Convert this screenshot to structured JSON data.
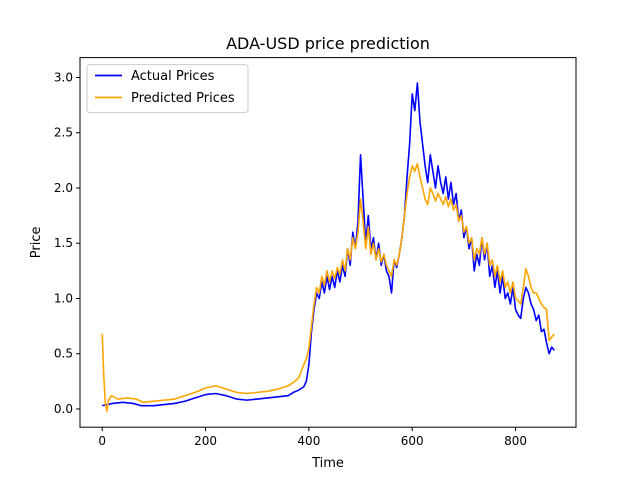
{
  "chart_data": {
    "type": "line",
    "title": "ADA-USD price prediction",
    "xlabel": "Time",
    "ylabel": "Price",
    "xlim": [
      -43,
      917
    ],
    "ylim": [
      -0.165,
      3.18
    ],
    "xticks": [
      0,
      200,
      400,
      600,
      800
    ],
    "xtick_labels": [
      "0",
      "200",
      "400",
      "600",
      "800"
    ],
    "yticks": [
      0.0,
      0.5,
      1.0,
      1.5,
      2.0,
      2.5,
      3.0
    ],
    "ytick_labels": [
      "0.0",
      "0.5",
      "1.0",
      "1.5",
      "2.0",
      "2.5",
      "3.0"
    ],
    "grid": false,
    "legend": "upper-left",
    "series": [
      {
        "name": "Actual Prices",
        "color": "#0000ff",
        "points": [
          [
            0,
            0.03
          ],
          [
            20,
            0.05
          ],
          [
            40,
            0.06
          ],
          [
            60,
            0.05
          ],
          [
            75,
            0.03
          ],
          [
            100,
            0.03
          ],
          [
            120,
            0.04
          ],
          [
            140,
            0.05
          ],
          [
            160,
            0.07
          ],
          [
            180,
            0.1
          ],
          [
            200,
            0.13
          ],
          [
            220,
            0.14
          ],
          [
            240,
            0.12
          ],
          [
            260,
            0.09
          ],
          [
            280,
            0.08
          ],
          [
            300,
            0.09
          ],
          [
            320,
            0.1
          ],
          [
            340,
            0.11
          ],
          [
            360,
            0.12
          ],
          [
            370,
            0.15
          ],
          [
            380,
            0.17
          ],
          [
            390,
            0.2
          ],
          [
            395,
            0.25
          ],
          [
            400,
            0.4
          ],
          [
            405,
            0.7
          ],
          [
            410,
            0.9
          ],
          [
            415,
            1.05
          ],
          [
            420,
            1.0
          ],
          [
            425,
            1.15
          ],
          [
            430,
            1.05
          ],
          [
            435,
            1.2
          ],
          [
            440,
            1.08
          ],
          [
            445,
            1.2
          ],
          [
            450,
            1.1
          ],
          [
            455,
            1.25
          ],
          [
            460,
            1.15
          ],
          [
            465,
            1.3
          ],
          [
            470,
            1.2
          ],
          [
            475,
            1.45
          ],
          [
            480,
            1.3
          ],
          [
            485,
            1.6
          ],
          [
            490,
            1.45
          ],
          [
            495,
            1.7
          ],
          [
            500,
            2.3
          ],
          [
            505,
            1.9
          ],
          [
            510,
            1.5
          ],
          [
            515,
            1.75
          ],
          [
            520,
            1.45
          ],
          [
            525,
            1.55
          ],
          [
            530,
            1.35
          ],
          [
            535,
            1.5
          ],
          [
            540,
            1.3
          ],
          [
            545,
            1.4
          ],
          [
            550,
            1.25
          ],
          [
            555,
            1.2
          ],
          [
            560,
            1.05
          ],
          [
            565,
            1.35
          ],
          [
            570,
            1.28
          ],
          [
            575,
            1.4
          ],
          [
            580,
            1.55
          ],
          [
            585,
            1.75
          ],
          [
            590,
            2.1
          ],
          [
            595,
            2.4
          ],
          [
            600,
            2.85
          ],
          [
            605,
            2.7
          ],
          [
            610,
            2.95
          ],
          [
            615,
            2.6
          ],
          [
            620,
            2.4
          ],
          [
            625,
            2.2
          ],
          [
            630,
            2.05
          ],
          [
            635,
            2.3
          ],
          [
            640,
            2.15
          ],
          [
            645,
            2.0
          ],
          [
            650,
            2.2
          ],
          [
            655,
            2.05
          ],
          [
            660,
            1.95
          ],
          [
            665,
            2.1
          ],
          [
            670,
            1.9
          ],
          [
            675,
            2.05
          ],
          [
            680,
            1.85
          ],
          [
            685,
            1.95
          ],
          [
            690,
            1.7
          ],
          [
            695,
            1.8
          ],
          [
            700,
            1.55
          ],
          [
            705,
            1.65
          ],
          [
            710,
            1.45
          ],
          [
            715,
            1.55
          ],
          [
            720,
            1.25
          ],
          [
            725,
            1.4
          ],
          [
            730,
            1.3
          ],
          [
            735,
            1.55
          ],
          [
            740,
            1.35
          ],
          [
            745,
            1.5
          ],
          [
            750,
            1.2
          ],
          [
            755,
            1.3
          ],
          [
            760,
            1.1
          ],
          [
            765,
            1.25
          ],
          [
            770,
            1.05
          ],
          [
            775,
            1.2
          ],
          [
            780,
            1.0
          ],
          [
            785,
            1.05
          ],
          [
            790,
            0.95
          ],
          [
            795,
            1.1
          ],
          [
            800,
            0.9
          ],
          [
            805,
            0.85
          ],
          [
            810,
            0.82
          ],
          [
            815,
            1.0
          ],
          [
            820,
            1.1
          ],
          [
            825,
            1.05
          ],
          [
            830,
            0.95
          ],
          [
            835,
            0.9
          ],
          [
            840,
            0.8
          ],
          [
            845,
            0.85
          ],
          [
            850,
            0.7
          ],
          [
            855,
            0.72
          ],
          [
            860,
            0.6
          ],
          [
            865,
            0.5
          ],
          [
            870,
            0.56
          ],
          [
            875,
            0.53
          ]
        ]
      },
      {
        "name": "Predicted Prices",
        "color": "#ffa500",
        "points": [
          [
            0,
            0.68
          ],
          [
            3,
            0.3
          ],
          [
            6,
            0.05
          ],
          [
            9,
            -0.02
          ],
          [
            12,
            0.08
          ],
          [
            18,
            0.12
          ],
          [
            30,
            0.09
          ],
          [
            50,
            0.1
          ],
          [
            65,
            0.09
          ],
          [
            80,
            0.06
          ],
          [
            100,
            0.07
          ],
          [
            120,
            0.08
          ],
          [
            140,
            0.09
          ],
          [
            160,
            0.12
          ],
          [
            180,
            0.15
          ],
          [
            200,
            0.19
          ],
          [
            220,
            0.21
          ],
          [
            240,
            0.18
          ],
          [
            260,
            0.15
          ],
          [
            280,
            0.14
          ],
          [
            300,
            0.15
          ],
          [
            320,
            0.16
          ],
          [
            340,
            0.18
          ],
          [
            360,
            0.21
          ],
          [
            370,
            0.24
          ],
          [
            380,
            0.28
          ],
          [
            390,
            0.4
          ],
          [
            395,
            0.45
          ],
          [
            400,
            0.55
          ],
          [
            405,
            0.75
          ],
          [
            410,
            0.95
          ],
          [
            415,
            1.1
          ],
          [
            420,
            1.05
          ],
          [
            425,
            1.2
          ],
          [
            430,
            1.12
          ],
          [
            435,
            1.25
          ],
          [
            440,
            1.15
          ],
          [
            445,
            1.25
          ],
          [
            450,
            1.18
          ],
          [
            455,
            1.28
          ],
          [
            460,
            1.22
          ],
          [
            465,
            1.35
          ],
          [
            470,
            1.25
          ],
          [
            475,
            1.45
          ],
          [
            480,
            1.35
          ],
          [
            485,
            1.55
          ],
          [
            490,
            1.45
          ],
          [
            495,
            1.6
          ],
          [
            500,
            1.9
          ],
          [
            505,
            1.7
          ],
          [
            510,
            1.45
          ],
          [
            515,
            1.65
          ],
          [
            520,
            1.4
          ],
          [
            525,
            1.5
          ],
          [
            530,
            1.35
          ],
          [
            535,
            1.45
          ],
          [
            540,
            1.33
          ],
          [
            545,
            1.4
          ],
          [
            550,
            1.3
          ],
          [
            555,
            1.25
          ],
          [
            560,
            1.2
          ],
          [
            565,
            1.35
          ],
          [
            570,
            1.3
          ],
          [
            575,
            1.4
          ],
          [
            580,
            1.55
          ],
          [
            585,
            1.75
          ],
          [
            590,
            1.95
          ],
          [
            595,
            2.1
          ],
          [
            600,
            2.2
          ],
          [
            605,
            2.15
          ],
          [
            610,
            2.22
          ],
          [
            615,
            2.1
          ],
          [
            620,
            2.0
          ],
          [
            625,
            1.9
          ],
          [
            630,
            1.85
          ],
          [
            635,
            2.0
          ],
          [
            640,
            1.95
          ],
          [
            645,
            1.88
          ],
          [
            650,
            1.95
          ],
          [
            655,
            1.9
          ],
          [
            660,
            1.85
          ],
          [
            665,
            1.92
          ],
          [
            670,
            1.83
          ],
          [
            675,
            1.9
          ],
          [
            680,
            1.8
          ],
          [
            685,
            1.85
          ],
          [
            690,
            1.7
          ],
          [
            695,
            1.75
          ],
          [
            700,
            1.6
          ],
          [
            705,
            1.65
          ],
          [
            710,
            1.5
          ],
          [
            715,
            1.55
          ],
          [
            720,
            1.35
          ],
          [
            725,
            1.45
          ],
          [
            730,
            1.4
          ],
          [
            735,
            1.55
          ],
          [
            740,
            1.4
          ],
          [
            745,
            1.5
          ],
          [
            750,
            1.3
          ],
          [
            755,
            1.35
          ],
          [
            760,
            1.2
          ],
          [
            765,
            1.3
          ],
          [
            770,
            1.15
          ],
          [
            775,
            1.25
          ],
          [
            780,
            1.1
          ],
          [
            785,
            1.15
          ],
          [
            790,
            1.05
          ],
          [
            795,
            1.15
          ],
          [
            800,
            1.0
          ],
          [
            805,
            0.98
          ],
          [
            810,
            0.95
          ],
          [
            815,
            1.1
          ],
          [
            820,
            1.27
          ],
          [
            825,
            1.2
          ],
          [
            830,
            1.1
          ],
          [
            835,
            1.05
          ],
          [
            840,
            1.05
          ],
          [
            845,
            1.0
          ],
          [
            850,
            0.95
          ],
          [
            855,
            0.92
          ],
          [
            860,
            0.9
          ],
          [
            865,
            0.62
          ],
          [
            870,
            0.65
          ],
          [
            875,
            0.68
          ]
        ]
      }
    ]
  }
}
